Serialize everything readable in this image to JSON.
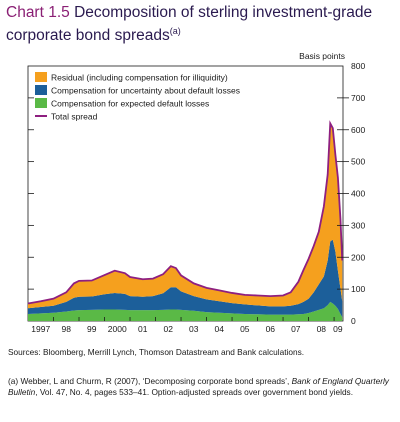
{
  "header": {
    "chart_number": "Chart 1.5",
    "title_line1": "Decomposition of sterling investment-grade",
    "title_line2": "corporate bond spreads",
    "title_note_marker": "(a)"
  },
  "chart_data": {
    "type": "area",
    "ylabel": "Basis points",
    "ylim": [
      0,
      800
    ],
    "yticks": [
      0,
      100,
      200,
      300,
      400,
      500,
      600,
      700,
      800
    ],
    "x_tick_labels": [
      "1997",
      "98",
      "99",
      "2000",
      "01",
      "02",
      "03",
      "04",
      "05",
      "06",
      "07",
      "08",
      "09"
    ],
    "x_range": [
      1997.0,
      2009.35
    ],
    "legend_position": "top-left",
    "x": [
      1997.0,
      1997.5,
      1998.0,
      1998.5,
      1998.8,
      1999.0,
      1999.5,
      2000.0,
      2000.4,
      2000.8,
      2001.0,
      2001.5,
      2001.9,
      2002.3,
      2002.6,
      2002.8,
      2003.0,
      2003.5,
      2004.0,
      2004.5,
      2005.0,
      2005.5,
      2006.0,
      2006.5,
      2007.0,
      2007.3,
      2007.6,
      2007.8,
      2008.0,
      2008.2,
      2008.4,
      2008.6,
      2008.75,
      2008.85,
      2008.95,
      2009.05,
      2009.15,
      2009.25,
      2009.32
    ],
    "series": [
      {
        "name": "Compensation for expected default losses",
        "color": "#5ab946",
        "values": [
          22,
          24,
          26,
          30,
          33,
          34,
          35,
          36,
          36,
          35,
          34,
          34,
          34,
          35,
          36,
          36,
          35,
          32,
          28,
          26,
          24,
          22,
          21,
          20,
          20,
          20,
          21,
          22,
          25,
          30,
          35,
          40,
          50,
          60,
          55,
          48,
          38,
          22,
          12
        ]
      },
      {
        "name": "Compensation for uncertainty about default losses",
        "color": "#1c5f9a",
        "values": [
          18,
          20,
          22,
          30,
          40,
          42,
          42,
          48,
          52,
          50,
          44,
          42,
          44,
          52,
          70,
          70,
          58,
          46,
          40,
          36,
          32,
          30,
          28,
          26,
          26,
          28,
          32,
          38,
          45,
          60,
          80,
          100,
          140,
          190,
          200,
          170,
          120,
          80,
          50
        ]
      },
      {
        "name": "Residual (including compensation for illiquidity)",
        "color": "#f5a01e",
        "values": [
          15,
          18,
          22,
          30,
          45,
          50,
          50,
          60,
          70,
          65,
          60,
          55,
          55,
          60,
          66,
          60,
          50,
          40,
          36,
          34,
          32,
          30,
          31,
          32,
          34,
          42,
          70,
          100,
          125,
          145,
          165,
          220,
          270,
          370,
          350,
          305,
          292,
          218,
          128
        ]
      }
    ],
    "total_series": {
      "name": "Total spread",
      "color": "#8e1f80"
    }
  },
  "sources": "Sources:  Bloomberg, Merrill Lynch, Thomson Datastream and Bank calculations.",
  "footnote": {
    "marker": "(a)",
    "text_pre": "Webber, L and Churm, R (2007), ‘Decomposing corporate bond spreads’, ",
    "journal": "Bank of England Quarterly Bulletin",
    "text_post": ", Vol. 47, No. 4, pages 533–41.  Option-adjusted spreads over government bond yields."
  }
}
